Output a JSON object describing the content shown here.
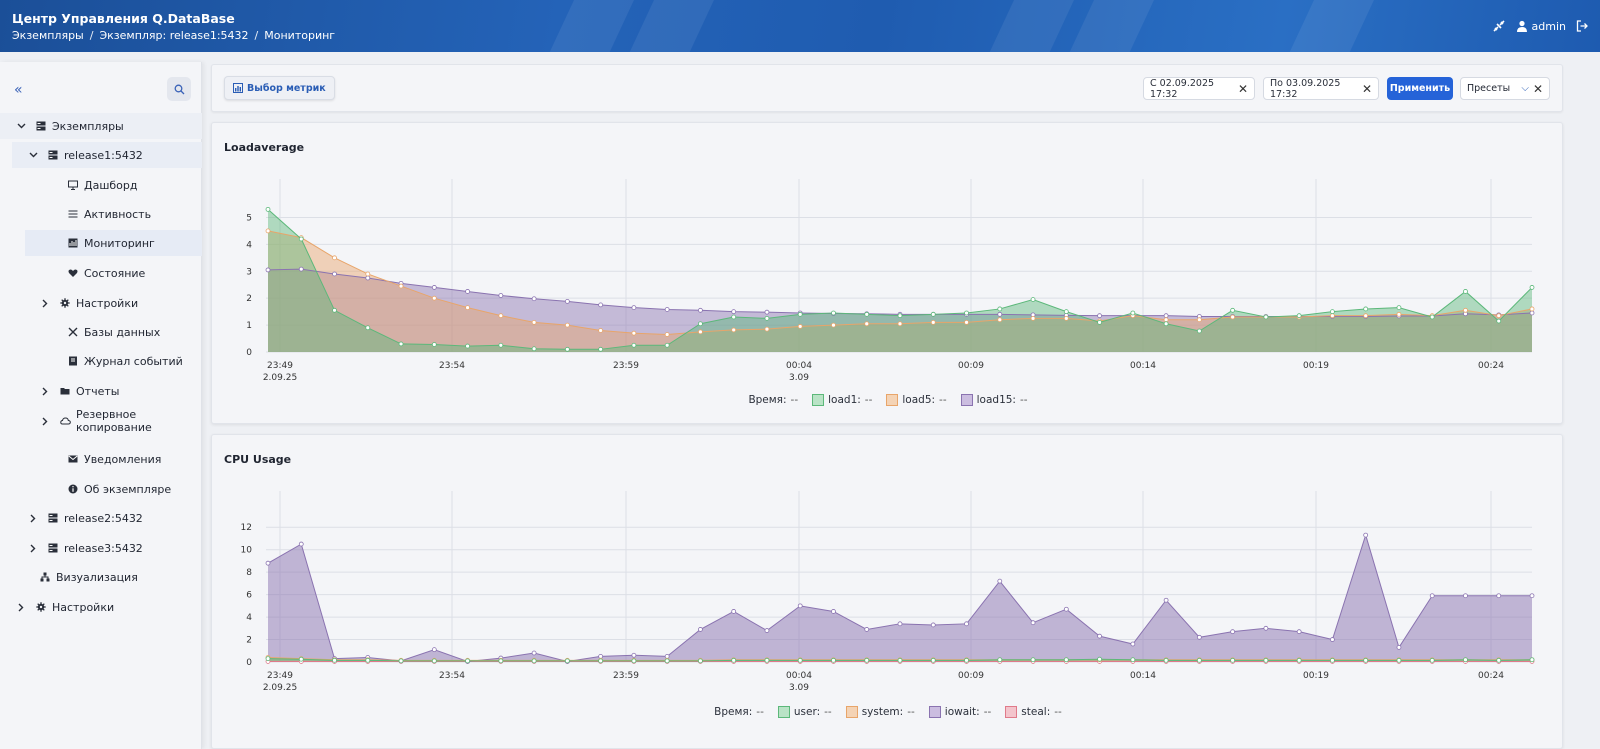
{
  "header": {
    "title": "Центр Управления Q.DataBase",
    "breadcrumb": [
      "Экземпляры",
      "Экземпляр: release1:5432",
      "Мониторинг"
    ],
    "user": "admin"
  },
  "sidebar": {
    "items": [
      {
        "label": "Экземпляры",
        "icon": "server-icon",
        "level": 0,
        "chevron": "down"
      },
      {
        "label": "release1:5432",
        "icon": "server-icon",
        "level": 1,
        "chevron": "down"
      },
      {
        "label": "Дашборд",
        "icon": "monitor-icon",
        "level": 2,
        "chevron": ""
      },
      {
        "label": "Активность",
        "icon": "list-icon",
        "level": 2,
        "chevron": ""
      },
      {
        "label": "Мониторинг",
        "icon": "chart-icon",
        "level": 2,
        "chevron": "",
        "selected": true
      },
      {
        "label": "Состояние",
        "icon": "heart-icon",
        "level": 2,
        "chevron": ""
      },
      {
        "label": "Настройки",
        "icon": "gear-icon",
        "level": 2,
        "chevron": "right"
      },
      {
        "label": "Базы данных",
        "icon": "tools-icon",
        "level": 2,
        "chevron": ""
      },
      {
        "label": "Журнал событий",
        "icon": "book-icon",
        "level": 2,
        "chevron": ""
      },
      {
        "label": "Отчеты",
        "icon": "folder-icon",
        "level": 2,
        "chevron": "right"
      },
      {
        "label": "Резервное копирование",
        "icon": "cloud-icon",
        "level": 2,
        "chevron": "right"
      },
      {
        "label": "Уведомления",
        "icon": "mail-icon",
        "level": 2,
        "chevron": ""
      },
      {
        "label": "Об экземпляре",
        "icon": "info-icon",
        "level": 2,
        "chevron": ""
      },
      {
        "label": "release2:5432",
        "icon": "server-icon",
        "level": 1,
        "chevron": "right"
      },
      {
        "label": "release3:5432",
        "icon": "server-icon",
        "level": 1,
        "chevron": "right"
      },
      {
        "label": "Визуализация",
        "icon": "hierarchy-icon",
        "level": 0,
        "chevron": ""
      },
      {
        "label": "Настройки",
        "icon": "gear-icon",
        "level": 0,
        "chevron": "right"
      }
    ]
  },
  "toolbar": {
    "metrics_label": "Выбор метрик",
    "from_value": "С 02.09.2025 17:32",
    "to_value": "По 03.09.2025 17:32",
    "apply_label": "Применить",
    "presets_label": "Пресеты"
  },
  "colors": {
    "load1": "#5cb87a",
    "load5": "#e8a56a",
    "load15": "#8a73b0",
    "user": "#5cb87a",
    "system": "#e8a56a",
    "iowait": "#8a73b0",
    "steal": "#e07a8a"
  },
  "chart_data": [
    {
      "type": "area",
      "title": "Loadaverage",
      "xlabel": "",
      "ylabel": "",
      "x_ticks": [
        "23:49\n2.09.25",
        "23:54",
        "23:59",
        "00:04\n3.09",
        "00:09",
        "00:14",
        "00:19",
        "00:24"
      ],
      "ylim": [
        0,
        5.5
      ],
      "y_ticks": [
        0,
        1,
        2,
        3,
        4,
        5
      ],
      "grid": true,
      "legend_prefix": "Время:",
      "legend_placeholder": "--",
      "series": [
        {
          "name": "load1",
          "values": [
            5.3,
            4.2,
            1.55,
            0.9,
            0.3,
            0.28,
            0.22,
            0.25,
            0.12,
            0.1,
            0.1,
            0.25,
            0.25,
            1.05,
            1.3,
            1.25,
            1.4,
            1.45,
            1.4,
            1.35,
            1.4,
            1.45,
            1.6,
            1.95,
            1.5,
            1.1,
            1.45,
            1.05,
            0.78,
            1.55,
            1.3,
            1.35,
            1.5,
            1.6,
            1.65,
            1.3,
            2.25,
            1.15,
            2.4
          ]
        },
        {
          "name": "load5",
          "values": [
            4.5,
            4.25,
            3.5,
            2.9,
            2.45,
            2.0,
            1.65,
            1.35,
            1.1,
            1.0,
            0.8,
            0.7,
            0.65,
            0.75,
            0.82,
            0.85,
            0.95,
            1.0,
            1.05,
            1.05,
            1.1,
            1.1,
            1.2,
            1.25,
            1.25,
            1.15,
            1.35,
            1.2,
            1.2,
            1.3,
            1.3,
            1.3,
            1.35,
            1.35,
            1.4,
            1.35,
            1.55,
            1.35,
            1.6
          ]
        },
        {
          "name": "load15",
          "values": [
            3.05,
            3.08,
            2.9,
            2.75,
            2.55,
            2.4,
            2.25,
            2.1,
            1.98,
            1.88,
            1.75,
            1.65,
            1.58,
            1.55,
            1.5,
            1.48,
            1.45,
            1.43,
            1.42,
            1.4,
            1.4,
            1.4,
            1.4,
            1.38,
            1.36,
            1.35,
            1.35,
            1.35,
            1.32,
            1.32,
            1.32,
            1.32,
            1.32,
            1.32,
            1.34,
            1.34,
            1.42,
            1.38,
            1.45
          ]
        }
      ]
    },
    {
      "type": "area",
      "title": "CPU Usage",
      "xlabel": "",
      "ylabel": "",
      "x_ticks": [
        "23:49\n2.09.25",
        "23:54",
        "23:59",
        "00:04\n3.09",
        "00:09",
        "00:14",
        "00:19",
        "00:24"
      ],
      "ylim": [
        0,
        13
      ],
      "y_ticks": [
        0,
        2,
        4,
        6,
        8,
        10,
        12
      ],
      "grid": true,
      "legend_prefix": "Время:",
      "legend_placeholder": "--",
      "series": [
        {
          "name": "user",
          "values": [
            0.3,
            0.25,
            0.15,
            0.15,
            0.1,
            0.1,
            0.1,
            0.1,
            0.1,
            0.1,
            0.1,
            0.1,
            0.1,
            0.1,
            0.15,
            0.15,
            0.15,
            0.15,
            0.15,
            0.15,
            0.15,
            0.15,
            0.2,
            0.2,
            0.2,
            0.25,
            0.2,
            0.15,
            0.15,
            0.15,
            0.15,
            0.15,
            0.15,
            0.15,
            0.15,
            0.15,
            0.2,
            0.15,
            0.2
          ]
        },
        {
          "name": "system",
          "values": [
            0.4,
            0.3,
            0.2,
            0.2,
            0.15,
            0.15,
            0.15,
            0.15,
            0.15,
            0.15,
            0.15,
            0.15,
            0.15,
            0.15,
            0.2,
            0.2,
            0.2,
            0.2,
            0.2,
            0.2,
            0.2,
            0.2,
            0.2,
            0.2,
            0.2,
            0.2,
            0.2,
            0.2,
            0.2,
            0.2,
            0.2,
            0.2,
            0.2,
            0.2,
            0.2,
            0.2,
            0.2,
            0.2,
            0.2
          ]
        },
        {
          "name": "iowait",
          "values": [
            8.8,
            10.5,
            0.3,
            0.4,
            0.1,
            1.1,
            0.05,
            0.35,
            0.8,
            0.05,
            0.5,
            0.6,
            0.5,
            2.9,
            4.5,
            2.8,
            5.0,
            4.5,
            2.9,
            3.4,
            3.3,
            3.4,
            7.2,
            3.5,
            4.7,
            2.3,
            1.6,
            5.5,
            2.2,
            2.7,
            3.0,
            2.7,
            2.0,
            11.3,
            1.3,
            5.9,
            5.9,
            5.9,
            5.9
          ]
        },
        {
          "name": "steal",
          "values": [
            0.05,
            0.05,
            0.05,
            0.05,
            0.05,
            0.05,
            0.05,
            0.05,
            0.05,
            0.05,
            0.05,
            0.05,
            0.05,
            0.05,
            0.05,
            0.05,
            0.05,
            0.05,
            0.05,
            0.05,
            0.05,
            0.05,
            0.05,
            0.05,
            0.05,
            0.05,
            0.05,
            0.05,
            0.05,
            0.05,
            0.05,
            0.05,
            0.05,
            0.05,
            0.05,
            0.05,
            0.05,
            0.05,
            0.05
          ]
        }
      ]
    }
  ]
}
